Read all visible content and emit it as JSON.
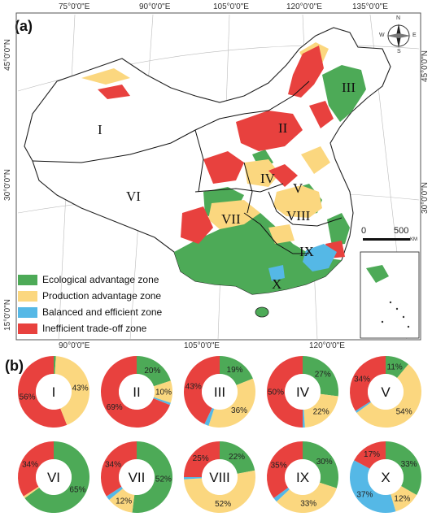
{
  "panel_a": {
    "label": "(a)",
    "top_lon_labels": [
      "75°0'0\"E",
      "90°0'0\"E",
      "105°0'0\"E",
      "120°0'0\"E",
      "135°0'0\"E"
    ],
    "bottom_lon_labels": [
      "90°0'0\"E",
      "105°0'0\"E",
      "120°0'0\"E"
    ],
    "left_lat_labels": [
      "45°0'0\"N",
      "30°0'0\"N",
      "15°0'0\"N"
    ],
    "right_lat_labels": [
      "45°0'0\"N",
      "30°0'0\"N"
    ],
    "zones": [
      "I",
      "II",
      "III",
      "IV",
      "V",
      "VI",
      "VII",
      "VIII",
      "IX",
      "X"
    ],
    "scale": {
      "zero": "0",
      "value": "500",
      "unit": "KM"
    },
    "compass": {
      "n": "N",
      "s": "S",
      "e": "E",
      "w": "W"
    },
    "legend": [
      {
        "label": "Ecological advantage zone",
        "color": "#4daa57"
      },
      {
        "label": "Production advantage zone",
        "color": "#fbd77f"
      },
      {
        "label": "Balanced and efficient zone",
        "color": "#55b8e6"
      },
      {
        "label": "Inefficient trade-off zone",
        "color": "#e8413e"
      }
    ]
  },
  "panel_b": {
    "label": "(b)"
  },
  "chart_data": {
    "type": "pie",
    "categories": [
      "Ecological advantage zone",
      "Production advantage zone",
      "Balanced and efficient zone",
      "Inefficient trade-off zone"
    ],
    "colors": [
      "#4daa57",
      "#fbd77f",
      "#55b8e6",
      "#e8413e"
    ],
    "series": [
      {
        "name": "I",
        "values": [
          1,
          43,
          0,
          56
        ],
        "labels": [
          "",
          "43%",
          "",
          "56%"
        ]
      },
      {
        "name": "II",
        "values": [
          20,
          10,
          1,
          69
        ],
        "labels": [
          "20%",
          "10%",
          "",
          "69%"
        ]
      },
      {
        "name": "III",
        "values": [
          19,
          36,
          2,
          43
        ],
        "labels": [
          "19%",
          "36%",
          "",
          "43%"
        ]
      },
      {
        "name": "IV",
        "values": [
          27,
          22,
          1,
          50
        ],
        "labels": [
          "27%",
          "22%",
          "",
          "50%"
        ]
      },
      {
        "name": "V",
        "values": [
          11,
          54,
          1,
          34
        ],
        "labels": [
          "11%",
          "54%",
          "",
          "34%"
        ]
      },
      {
        "name": "VI",
        "values": [
          65,
          1,
          0,
          34
        ],
        "labels": [
          "65%",
          "",
          "",
          "34%"
        ]
      },
      {
        "name": "VII",
        "values": [
          52,
          12,
          2,
          34
        ],
        "labels": [
          "52%",
          "12%",
          "",
          "34%"
        ]
      },
      {
        "name": "VIII",
        "values": [
          22,
          52,
          1,
          25
        ],
        "labels": [
          "22%",
          "52%",
          "",
          "25%"
        ]
      },
      {
        "name": "IX",
        "values": [
          30,
          33,
          2,
          35
        ],
        "labels": [
          "30%",
          "33%",
          "",
          "35%"
        ]
      },
      {
        "name": "X",
        "values": [
          33,
          12,
          37,
          17
        ],
        "labels": [
          "33%",
          "12%",
          "37%",
          "17%"
        ]
      }
    ]
  }
}
